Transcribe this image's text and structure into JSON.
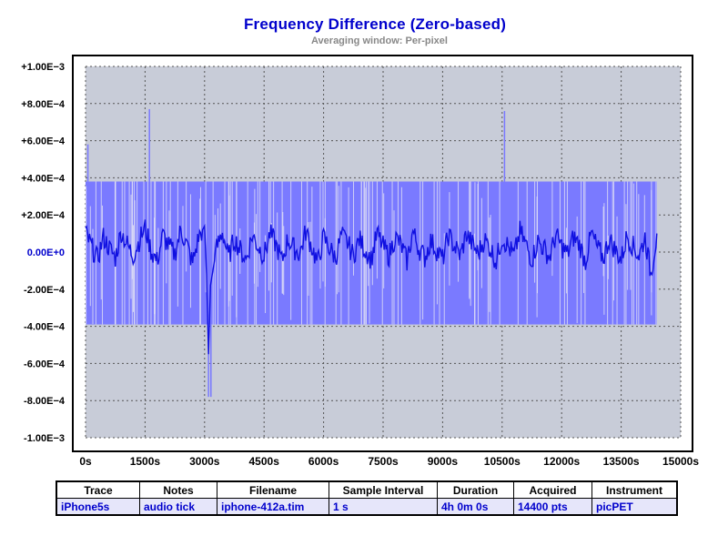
{
  "chart_data": {
    "type": "line",
    "title": "Frequency  Difference  (Zero-based)",
    "subtitle": "Averaging window: Per-pixel",
    "xlabel": "",
    "ylabel": "",
    "xlim": [
      0,
      15000
    ],
    "ylim": [
      -0.001,
      0.001
    ],
    "x_ticks": [
      0,
      1500,
      3000,
      4500,
      6000,
      7500,
      9000,
      10500,
      12000,
      13500,
      15000
    ],
    "x_tick_labels": [
      "0s",
      "1500s",
      "3000s",
      "4500s",
      "6000s",
      "7500s",
      "9000s",
      "10500s",
      "12000s",
      "13500s",
      "15000s"
    ],
    "y_ticks": [
      0.001,
      0.0008,
      0.0006,
      0.0004,
      0.0002,
      0,
      -0.0002,
      -0.0004,
      -0.0006,
      -0.0008,
      -0.001
    ],
    "y_tick_labels": [
      "+1.00E−3",
      "+8.00E−4",
      "+6.00E−4",
      "+4.00E−4",
      "+2.00E−4",
      "0.00E+0",
      "-2.00E−4",
      "-4.00E−4",
      "-6.00E−4",
      "-8.00E−4",
      "-1.00E−3"
    ],
    "grid": true,
    "data_range": [
      0,
      14400
    ],
    "envelope": {
      "upper": 0.00038,
      "lower": -0.00039
    },
    "spikes": [
      {
        "x": 60,
        "y": 0.00058
      },
      {
        "x": 1610,
        "y": 0.00077
      },
      {
        "x": 10560,
        "y": 0.00076
      },
      {
        "x": 3100,
        "y": -0.00078
      },
      {
        "x": 3160,
        "y": -0.00078
      }
    ],
    "average_series": {
      "x": [
        0,
        150,
        300,
        450,
        600,
        750,
        900,
        1050,
        1200,
        1350,
        1500,
        1650,
        1800,
        1950,
        2100,
        2250,
        2400,
        2550,
        2700,
        2850,
        3000,
        3050,
        3100,
        3150,
        3300,
        3450,
        3600,
        3750,
        3900,
        4050,
        4200,
        4350,
        4500,
        4650,
        4800,
        4950,
        5100,
        5250,
        5400,
        5550,
        5700,
        5850,
        6000,
        6150,
        6300,
        6450,
        6600,
        6750,
        6900,
        7050,
        7200,
        7350,
        7500,
        7650,
        7800,
        7950,
        8100,
        8250,
        8400,
        8550,
        8700,
        8850,
        9000,
        9150,
        9300,
        9450,
        9600,
        9750,
        9900,
        10050,
        10200,
        10350,
        10500,
        10650,
        10800,
        10950,
        11100,
        11250,
        11400,
        11550,
        11700,
        11850,
        12000,
        12150,
        12300,
        12450,
        12600,
        12750,
        12900,
        13050,
        13200,
        13350,
        13500,
        13650,
        13800,
        13950,
        14100,
        14250,
        14400
      ],
      "y": [
        0.0001,
        3e-05,
        -4e-05,
        8e-05,
        2e-05,
        -3e-05,
        0.00011,
        4e-05,
        -2e-05,
        6e-05,
        0.00013,
        1e-05,
        -5e-05,
        9e-05,
        3e-05,
        -1e-05,
        0.00012,
        4e-05,
        -6e-05,
        8e-05,
        0.00014,
        -0.00012,
        -0.00055,
        -0.00018,
        2e-05,
        0.00011,
        -3e-05,
        7e-05,
        1e-05,
        -4e-05,
        9e-05,
        3e-05,
        -2e-05,
        0.0001,
        4e-05,
        -5e-05,
        7e-05,
        2e-05,
        -1e-05,
        0.00011,
        3e-05,
        -6e-05,
        8e-05,
        2e-05,
        -3e-05,
        9e-05,
        5e-05,
        -2e-05,
        7e-05,
        1e-05,
        -4e-05,
        0.0001,
        3e-05,
        -2e-05,
        8e-05,
        4e-05,
        -5e-05,
        0.00011,
        2e-05,
        -3e-05,
        6e-05,
        1e-05,
        -4e-05,
        9e-05,
        3e-05,
        -2e-05,
        0.0001,
        4e-05,
        -1e-05,
        7e-05,
        2e-05,
        -5e-05,
        8e-05,
        3e-05,
        -2e-05,
        0.00011,
        4e-05,
        -4e-05,
        6e-05,
        2e-05,
        -3e-05,
        9e-05,
        3e-05,
        -1e-05,
        8e-05,
        4e-05,
        -5e-05,
        0.0001,
        2e-05,
        -3e-05,
        7e-05,
        1e-05,
        -4e-05,
        9e-05,
        3e-05,
        -2e-05,
        8e-05,
        -0.00012,
        0.0001
      ]
    }
  },
  "info_table": {
    "headers": [
      "Trace",
      "Notes",
      "Filename",
      "Sample Interval",
      "Duration",
      "Acquired",
      "Instrument"
    ],
    "row": [
      "iPhone5s",
      "audio tick",
      "iphone-412a.tim",
      "1 s",
      "4h 0m 0s",
      "14400 pts",
      "picPET"
    ]
  },
  "colors": {
    "plot_background": "#c8ccd8",
    "envelope_fill": "#7a7aff",
    "line": "#1010e0",
    "title": "#0000cc",
    "subtitle": "#888888",
    "table_cell": "#e6e6fa"
  }
}
